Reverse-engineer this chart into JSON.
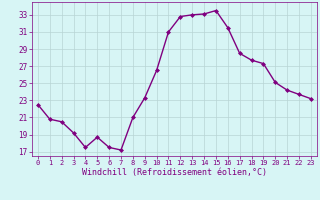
{
  "x": [
    0,
    1,
    2,
    3,
    4,
    5,
    6,
    7,
    8,
    9,
    10,
    11,
    12,
    13,
    14,
    15,
    16,
    17,
    18,
    19,
    20,
    21,
    22,
    23
  ],
  "y": [
    22.5,
    20.8,
    20.5,
    19.2,
    17.5,
    18.7,
    17.5,
    17.2,
    21.0,
    23.3,
    26.5,
    31.0,
    32.8,
    33.0,
    33.1,
    33.5,
    31.5,
    28.5,
    27.7,
    27.3,
    25.1,
    24.2,
    23.7,
    23.2
  ],
  "line_color": "#800080",
  "marker": "D",
  "marker_size": 2.0,
  "bg_color": "#d7f5f5",
  "grid_color": "#b8d4d4",
  "xlabel": "Windchill (Refroidissement éolien,°C)",
  "ylabel": "",
  "xlim": [
    -0.5,
    23.5
  ],
  "ylim": [
    16.5,
    34.5
  ],
  "yticks": [
    17,
    19,
    21,
    23,
    25,
    27,
    29,
    31,
    33
  ],
  "xticks": [
    0,
    1,
    2,
    3,
    4,
    5,
    6,
    7,
    8,
    9,
    10,
    11,
    12,
    13,
    14,
    15,
    16,
    17,
    18,
    19,
    20,
    21,
    22,
    23
  ],
  "tick_color": "#800080",
  "ytick_labelsize": 5.5,
  "xtick_labelsize": 5.0,
  "xlabel_fontsize": 6.0,
  "spine_color": "#800080",
  "linewidth": 1.0
}
